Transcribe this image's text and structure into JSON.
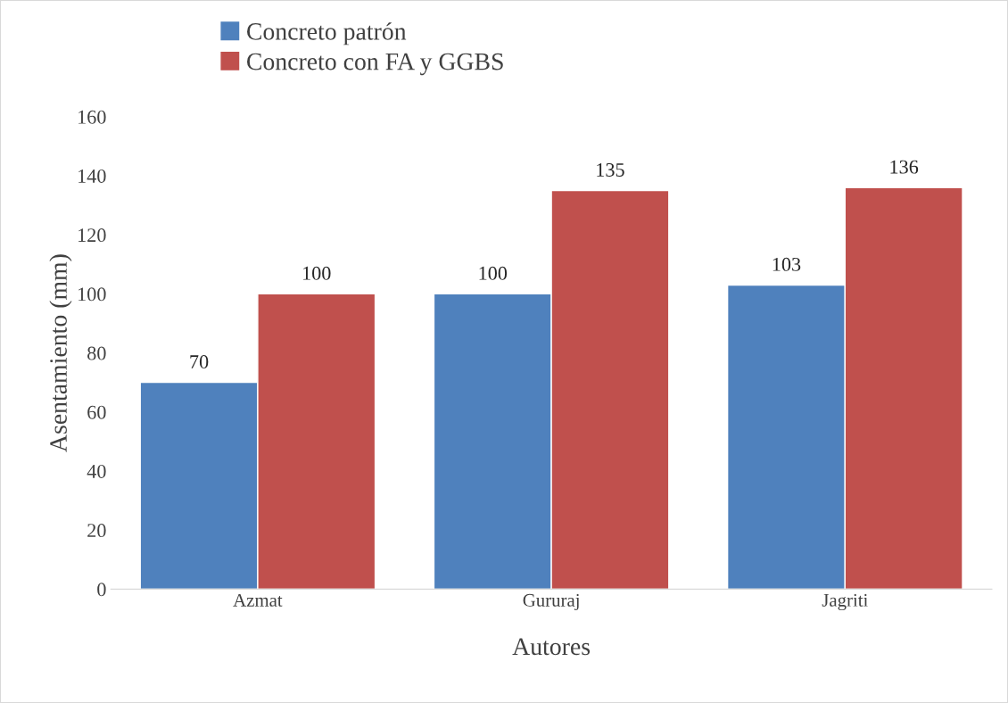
{
  "chart_data": {
    "type": "bar",
    "xlabel": "Autores",
    "ylabel": "Asentamiento (mm)",
    "categories": [
      "Azmat",
      "Gururaj",
      "Jagriti"
    ],
    "series": [
      {
        "name": "Concreto patrón",
        "color": "#4f81bd",
        "values": [
          70,
          100,
          103
        ]
      },
      {
        "name": "Concreto con FA y GGBS",
        "color": "#c0504d",
        "values": [
          100,
          135,
          136
        ]
      }
    ],
    "ylim": [
      0,
      160
    ],
    "yticks": [
      0,
      20,
      40,
      60,
      80,
      100,
      120,
      140,
      160
    ],
    "data_labels": true,
    "grid": false,
    "legend": "top"
  }
}
